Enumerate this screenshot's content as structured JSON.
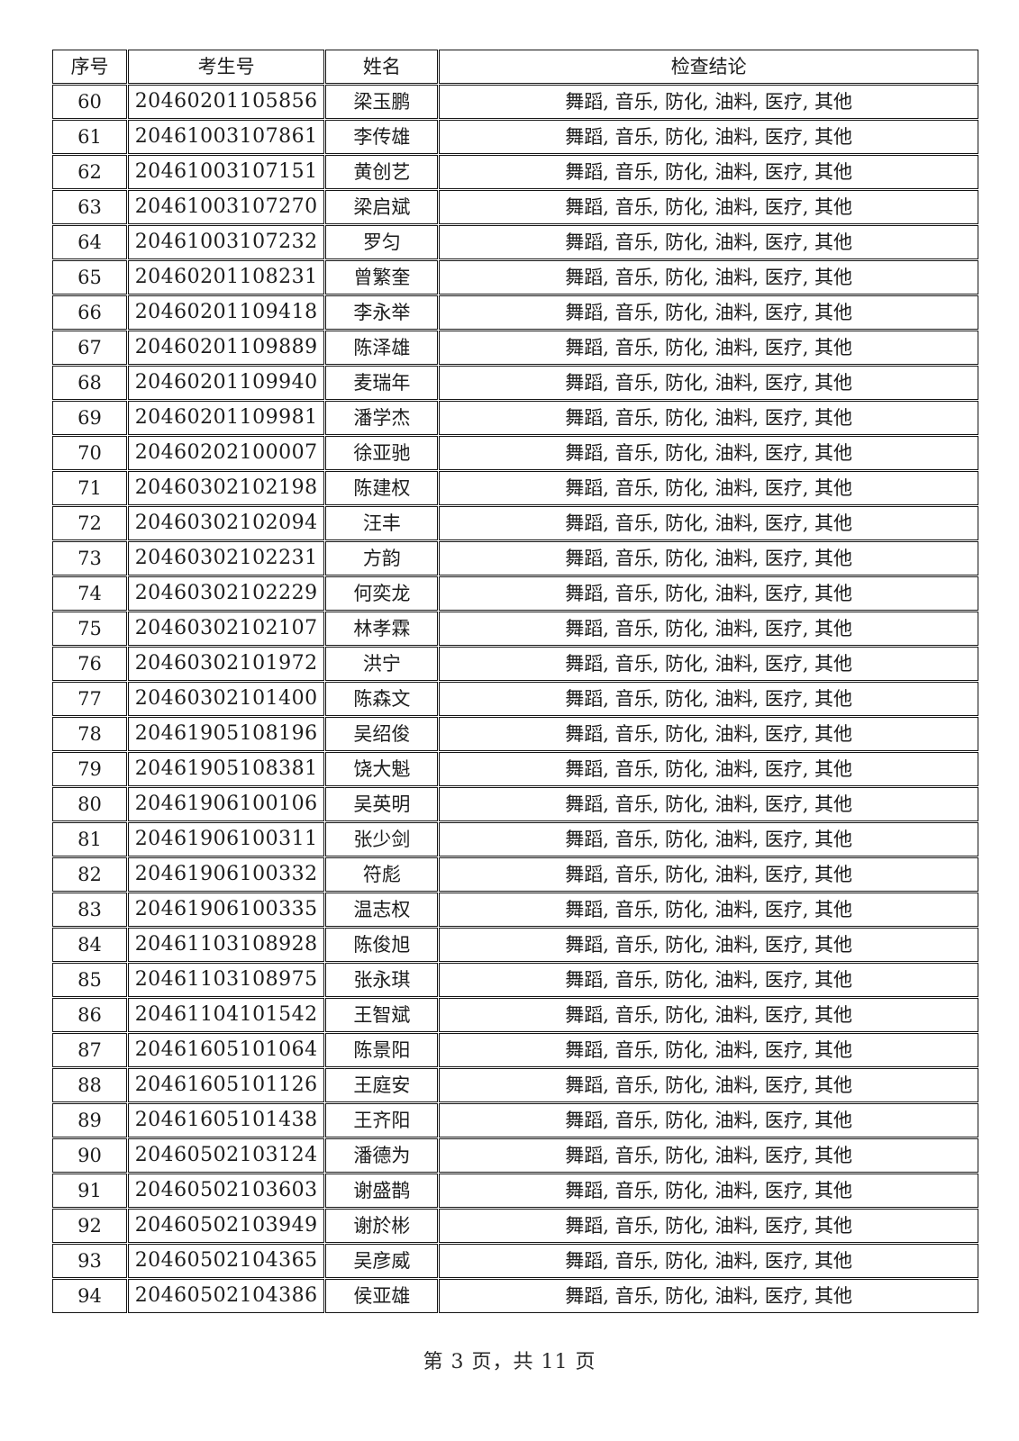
{
  "document": {
    "table": {
      "headers": [
        "序号",
        "考生号",
        "姓名",
        "检查结论"
      ],
      "rows": [
        [
          "60",
          "20460201105856",
          "梁玉鹏",
          "舞蹈, 音乐, 防化, 油料, 医疗, 其他"
        ],
        [
          "61",
          "20461003107861",
          "李传雄",
          "舞蹈, 音乐, 防化, 油料, 医疗, 其他"
        ],
        [
          "62",
          "20461003107151",
          "黄创艺",
          "舞蹈, 音乐, 防化, 油料, 医疗, 其他"
        ],
        [
          "63",
          "20461003107270",
          "梁启斌",
          "舞蹈, 音乐, 防化, 油料, 医疗, 其他"
        ],
        [
          "64",
          "20461003107232",
          "罗匀",
          "舞蹈, 音乐, 防化, 油料, 医疗, 其他"
        ],
        [
          "65",
          "20460201108231",
          "曾繁奎",
          "舞蹈, 音乐, 防化, 油料, 医疗, 其他"
        ],
        [
          "66",
          "20460201109418",
          "李永举",
          "舞蹈, 音乐, 防化, 油料, 医疗, 其他"
        ],
        [
          "67",
          "20460201109889",
          "陈泽雄",
          "舞蹈, 音乐, 防化, 油料, 医疗, 其他"
        ],
        [
          "68",
          "20460201109940",
          "麦瑞年",
          "舞蹈, 音乐, 防化, 油料, 医疗, 其他"
        ],
        [
          "69",
          "20460201109981",
          "潘学杰",
          "舞蹈, 音乐, 防化, 油料, 医疗, 其他"
        ],
        [
          "70",
          "20460202100007",
          "徐亚驰",
          "舞蹈, 音乐, 防化, 油料, 医疗, 其他"
        ],
        [
          "71",
          "20460302102198",
          "陈建权",
          "舞蹈, 音乐, 防化, 油料, 医疗, 其他"
        ],
        [
          "72",
          "20460302102094",
          "汪丰",
          "舞蹈, 音乐, 防化, 油料, 医疗, 其他"
        ],
        [
          "73",
          "20460302102231",
          "方韵",
          "舞蹈, 音乐, 防化, 油料, 医疗, 其他"
        ],
        [
          "74",
          "20460302102229",
          "何奕龙",
          "舞蹈, 音乐, 防化, 油料, 医疗, 其他"
        ],
        [
          "75",
          "20460302102107",
          "林孝霖",
          "舞蹈, 音乐, 防化, 油料, 医疗, 其他"
        ],
        [
          "76",
          "20460302101972",
          "洪宁",
          "舞蹈, 音乐, 防化, 油料, 医疗, 其他"
        ],
        [
          "77",
          "20460302101400",
          "陈森文",
          "舞蹈, 音乐, 防化, 油料, 医疗, 其他"
        ],
        [
          "78",
          "20461905108196",
          "吴绍俊",
          "舞蹈, 音乐, 防化, 油料, 医疗, 其他"
        ],
        [
          "79",
          "20461905108381",
          "饶大魁",
          "舞蹈, 音乐, 防化, 油料, 医疗, 其他"
        ],
        [
          "80",
          "20461906100106",
          "吴英明",
          "舞蹈, 音乐, 防化, 油料, 医疗, 其他"
        ],
        [
          "81",
          "20461906100311",
          "张少剑",
          "舞蹈, 音乐, 防化, 油料, 医疗, 其他"
        ],
        [
          "82",
          "20461906100332",
          "符彪",
          "舞蹈, 音乐, 防化, 油料, 医疗, 其他"
        ],
        [
          "83",
          "20461906100335",
          "温志权",
          "舞蹈, 音乐, 防化, 油料, 医疗, 其他"
        ],
        [
          "84",
          "20461103108928",
          "陈俊旭",
          "舞蹈, 音乐, 防化, 油料, 医疗, 其他"
        ],
        [
          "85",
          "20461103108975",
          "张永琪",
          "舞蹈, 音乐, 防化, 油料, 医疗, 其他"
        ],
        [
          "86",
          "20461104101542",
          "王智斌",
          "舞蹈, 音乐, 防化, 油料, 医疗, 其他"
        ],
        [
          "87",
          "20461605101064",
          "陈景阳",
          "舞蹈, 音乐, 防化, 油料, 医疗, 其他"
        ],
        [
          "88",
          "20461605101126",
          "王庭安",
          "舞蹈, 音乐, 防化, 油料, 医疗, 其他"
        ],
        [
          "89",
          "20461605101438",
          "王齐阳",
          "舞蹈, 音乐, 防化, 油料, 医疗, 其他"
        ],
        [
          "90",
          "20460502103124",
          "潘德为",
          "舞蹈, 音乐, 防化, 油料, 医疗, 其他"
        ],
        [
          "91",
          "20460502103603",
          "谢盛鹊",
          "舞蹈, 音乐, 防化, 油料, 医疗, 其他"
        ],
        [
          "92",
          "20460502103949",
          "谢於彬",
          "舞蹈, 音乐, 防化, 油料, 医疗, 其他"
        ],
        [
          "93",
          "20460502104365",
          "吴彦威",
          "舞蹈, 音乐, 防化, 油料, 医疗, 其他"
        ],
        [
          "94",
          "20460502104386",
          "侯亚雄",
          "舞蹈, 音乐, 防化, 油料, 医疗, 其他"
        ]
      ]
    },
    "footer": {
      "page_info": "第 3 页，共 11 页"
    }
  }
}
